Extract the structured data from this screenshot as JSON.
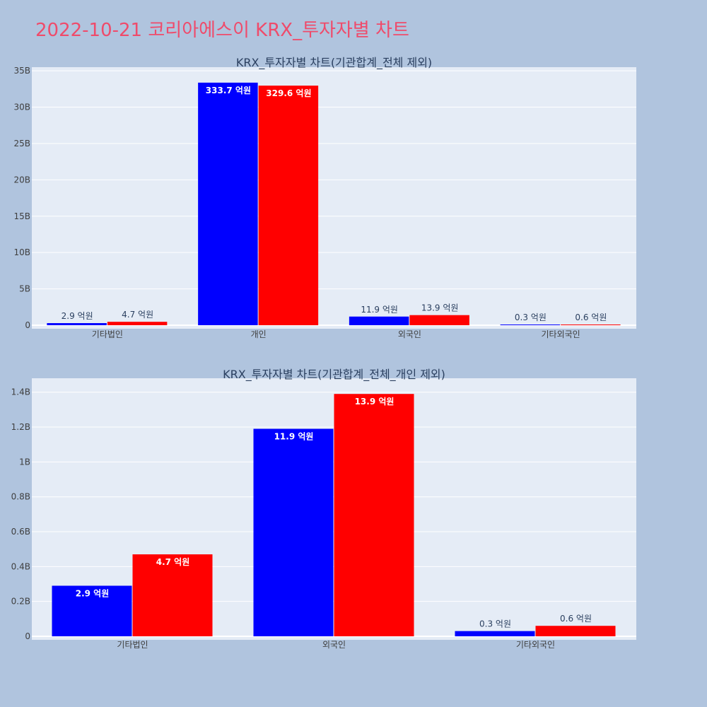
{
  "page": {
    "title": "2022-10-21 코리아에스이 KRX_투자자별 차트"
  },
  "colors": {
    "background": "#b0c4de",
    "plot_bg": "#e5ecf6",
    "grid": "#ffffff",
    "buy": "#0000ff",
    "sell": "#ff0000",
    "title": "#ef4b6b"
  },
  "chart_data": [
    {
      "type": "bar",
      "title": "KRX_투자자별 차트(기관합계_전체 제외)",
      "categories": [
        "기타법인",
        "개인",
        "외국인",
        "기타외국인"
      ],
      "series": [
        {
          "color": "#0000ff",
          "values": [
            290000000,
            33370000000,
            1190000000,
            30000000
          ],
          "labels": [
            "2.9 억원",
            "333.7 억원",
            "11.9 억원",
            "0.3 억원"
          ]
        },
        {
          "color": "#ff0000",
          "values": [
            470000000,
            32960000000,
            1390000000,
            60000000
          ],
          "labels": [
            "4.7 억원",
            "329.6 억원",
            "13.9 억원",
            "0.6 억원"
          ]
        }
      ],
      "ylim": [
        0,
        35500000000
      ],
      "yticks": [
        {
          "value": 0,
          "label": "0"
        },
        {
          "value": 5000000000,
          "label": "5B"
        },
        {
          "value": 10000000000,
          "label": "10B"
        },
        {
          "value": 15000000000,
          "label": "15B"
        },
        {
          "value": 20000000000,
          "label": "20B"
        },
        {
          "value": 25000000000,
          "label": "25B"
        },
        {
          "value": 30000000000,
          "label": "30B"
        },
        {
          "value": 35000000000,
          "label": "35B"
        }
      ],
      "grid": true,
      "xlabel": "",
      "ylabel": ""
    },
    {
      "type": "bar",
      "title": "KRX_투자자별 차트(기관합계_전체_개인 제외)",
      "categories": [
        "기타법인",
        "외국인",
        "기타외국인"
      ],
      "series": [
        {
          "color": "#0000ff",
          "values": [
            290000000,
            1190000000,
            30000000
          ],
          "labels": [
            "2.9 억원",
            "11.9 억원",
            "0.3 억원"
          ]
        },
        {
          "color": "#ff0000",
          "values": [
            470000000,
            1390000000,
            60000000
          ],
          "labels": [
            "4.7 억원",
            "13.9 억원",
            "0.6 억원"
          ]
        }
      ],
      "ylim": [
        0,
        1480000000
      ],
      "yticks": [
        {
          "value": 0,
          "label": "0"
        },
        {
          "value": 200000000,
          "label": "0.2B"
        },
        {
          "value": 400000000,
          "label": "0.4B"
        },
        {
          "value": 600000000,
          "label": "0.6B"
        },
        {
          "value": 800000000,
          "label": "0.8B"
        },
        {
          "value": 1000000000,
          "label": "1B"
        },
        {
          "value": 1200000000,
          "label": "1.2B"
        },
        {
          "value": 1400000000,
          "label": "1.4B"
        }
      ],
      "grid": true,
      "xlabel": "",
      "ylabel": ""
    }
  ]
}
